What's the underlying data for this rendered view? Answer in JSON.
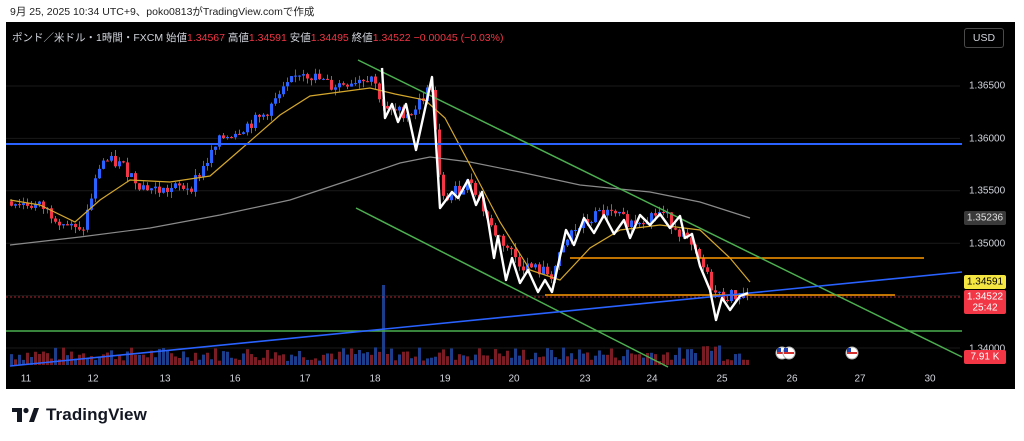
{
  "caption": "9月 25, 2025 10:34 UTC+9、poko0813がTradingView.comで作成",
  "header": {
    "symbol": "ポンド／米ドル・1時間・FXCM",
    "open_label": "始値",
    "open": "1.34567",
    "high_label": "高値",
    "high": "1.34591",
    "low_label": "安値",
    "low": "1.34495",
    "close_label": "終値",
    "close": "1.34522",
    "change": "−0.00045 (−0.03%)"
  },
  "currency_button": "USD",
  "price_axis": {
    "ticks": [
      "1.36500",
      "1.36000",
      "1.35500",
      "1.35000",
      "1.34500",
      "1.34000"
    ],
    "badge_sma": "1.35236",
    "badge_high": "1.34591",
    "badge_close": "1.34522",
    "badge_timer": "25:42",
    "badge_volume": "7.91 K"
  },
  "time_axis": [
    "11",
    "12",
    "13",
    "16",
    "17",
    "18",
    "19",
    "20",
    "23",
    "24",
    "25",
    "26",
    "27",
    "30"
  ],
  "brand": "TradingView",
  "colors": {
    "background": "#000000",
    "up": "#2962ff",
    "down": "#f23645",
    "ema": "#d4a72c",
    "sma": "#8a8a8a",
    "channel": "#4caf50",
    "support": "#ff9800",
    "trendline": "#2962ff",
    "highlight": "#ffffff"
  }
}
